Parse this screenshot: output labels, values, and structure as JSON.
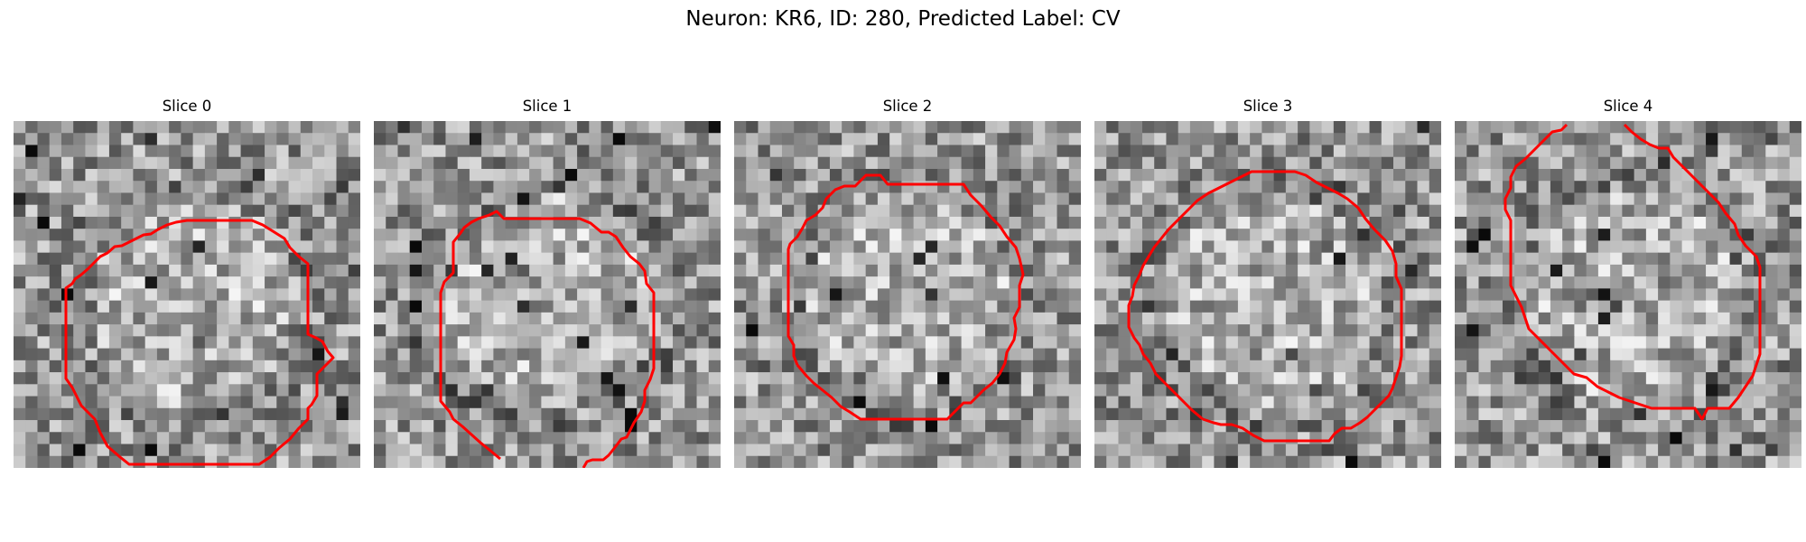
{
  "figure": {
    "title": "Neuron: KR6, ID: 280, Predicted Label: CV"
  },
  "panels": [
    {
      "title": "Slice 0",
      "seed": 11
    },
    {
      "title": "Slice 1",
      "seed": 23
    },
    {
      "title": "Slice 2",
      "seed": 37
    },
    {
      "title": "Slice 3",
      "seed": 41
    },
    {
      "title": "Slice 4",
      "seed": 59
    }
  ],
  "colors": {
    "contour": "#ff0000",
    "colormap": "gray"
  }
}
